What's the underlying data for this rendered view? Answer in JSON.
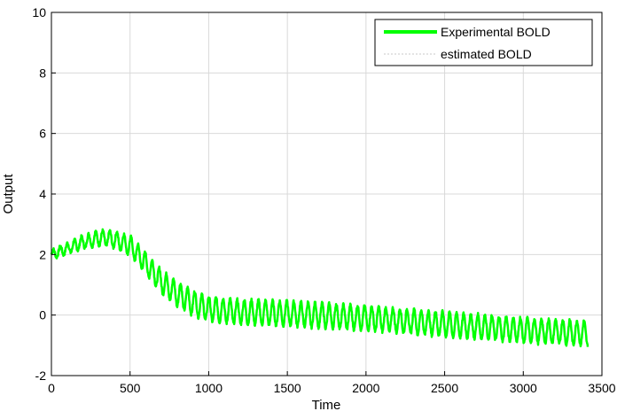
{
  "chart_data": {
    "type": "line",
    "title": "",
    "xlabel": "Time",
    "ylabel": "Output",
    "xlim": [
      0,
      3500
    ],
    "ylim": [
      -2,
      10
    ],
    "x_ticks": [
      0,
      500,
      1000,
      1500,
      2000,
      2500,
      3000,
      3500
    ],
    "y_ticks": [
      -2,
      0,
      2,
      4,
      6,
      8,
      10
    ],
    "grid": true,
    "legend_position": "top-right",
    "series": [
      {
        "name": "Experimental BOLD",
        "color": "#00ff00",
        "style": "solid-thick",
        "trend": {
          "x": [
            0,
            100,
            200,
            300,
            400,
            500,
            600,
            700,
            800,
            900,
            1000,
            1200,
            1500,
            2000,
            2500,
            3000,
            3400
          ],
          "y": [
            2.0,
            2.2,
            2.4,
            2.55,
            2.5,
            2.3,
            1.7,
            1.1,
            0.7,
            0.4,
            0.2,
            0.1,
            0.05,
            -0.1,
            -0.3,
            -0.5,
            -0.6
          ]
        },
        "oscillation_amplitude": 0.4,
        "oscillation_period": 45,
        "x_end": 3410
      },
      {
        "name": "estimated BOLD",
        "color": "#c8c8c8",
        "style": "dotted"
      }
    ]
  }
}
